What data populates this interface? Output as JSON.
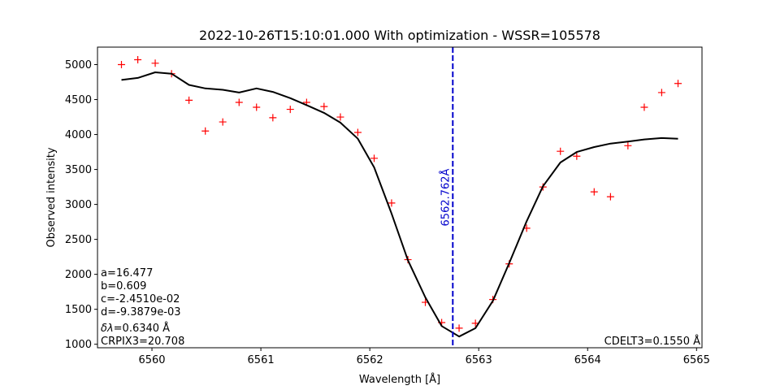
{
  "chart_data": {
    "type": "line",
    "title": "2022-10-26T15:10:01.000 With optimization - WSSR=105578",
    "xlabel": "Wavelength [Å]",
    "ylabel": "Observed intensity",
    "xlim": [
      6559.5,
      6565.05
    ],
    "ylim": [
      950,
      5250
    ],
    "grid": false,
    "xticks": [
      6560,
      6561,
      6562,
      6563,
      6564,
      6565
    ],
    "yticks": [
      1000,
      1500,
      2000,
      2500,
      3000,
      3500,
      4000,
      4500,
      5000
    ],
    "series": [
      {
        "kind": "scatter",
        "marker": "+",
        "color": "#ff0000",
        "x": [
          6559.72,
          6559.87,
          6560.03,
          6560.18,
          6560.34,
          6560.49,
          6560.65,
          6560.8,
          6560.96,
          6561.11,
          6561.27,
          6561.42,
          6561.58,
          6561.73,
          6561.89,
          6562.04,
          6562.2,
          6562.35,
          6562.51,
          6562.66,
          6562.82,
          6562.97,
          6563.13,
          6563.28,
          6563.44,
          6563.59,
          6563.75,
          6563.9,
          6564.06,
          6564.21,
          6564.37,
          6564.52,
          6564.68,
          6564.83
        ],
        "y": [
          5000,
          5070,
          5020,
          4870,
          4490,
          4050,
          4180,
          4460,
          4390,
          4240,
          4360,
          4460,
          4400,
          4250,
          4030,
          3660,
          3020,
          2210,
          1600,
          1310,
          1230,
          1300,
          1640,
          2150,
          2660,
          3250,
          3760,
          3690,
          3180,
          3110,
          3840,
          4390,
          4600,
          4730
        ]
      },
      {
        "kind": "line",
        "color": "#000000",
        "x": [
          6559.72,
          6559.87,
          6560.03,
          6560.18,
          6560.34,
          6560.49,
          6560.65,
          6560.8,
          6560.96,
          6561.11,
          6561.27,
          6561.42,
          6561.58,
          6561.73,
          6561.89,
          6562.04,
          6562.2,
          6562.35,
          6562.51,
          6562.66,
          6562.82,
          6562.97,
          6563.13,
          6563.28,
          6563.44,
          6563.59,
          6563.75,
          6563.9,
          6564.06,
          6564.21,
          6564.37,
          6564.52,
          6564.68,
          6564.83
        ],
        "y": [
          4780,
          4810,
          4890,
          4870,
          4710,
          4660,
          4640,
          4600,
          4660,
          4610,
          4520,
          4420,
          4310,
          4170,
          3940,
          3530,
          2870,
          2200,
          1670,
          1260,
          1110,
          1230,
          1620,
          2160,
          2760,
          3260,
          3600,
          3750,
          3820,
          3870,
          3900,
          3930,
          3950,
          3940
        ]
      }
    ],
    "vline": {
      "x": 6562.762,
      "color": "#0000cc",
      "style": "dashed",
      "label": "6562.762Å"
    },
    "annotations": {
      "params": [
        "a=16.477",
        "b=0.609",
        "c=-2.4510e-02",
        "d=-9.3879e-03"
      ],
      "dlambda_symbol": "δλ",
      "dlambda_value": "=0.6340 Å",
      "crpix": "CRPIX3=20.708",
      "cdelt": "CDELT3=0.1550 Å"
    }
  }
}
